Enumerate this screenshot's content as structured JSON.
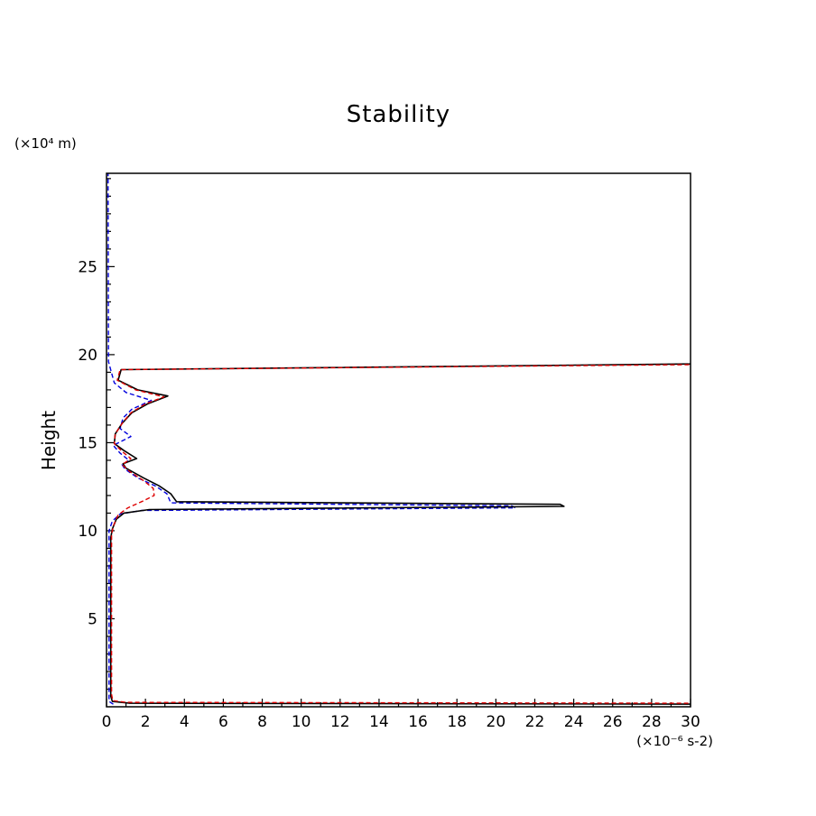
{
  "chart_data": {
    "type": "line",
    "title": "Stability",
    "ylabel": "Height",
    "ylabel_unit": "(×10⁴ m)",
    "xlabel": "(×10⁻⁶ s-2)",
    "xlim": [
      0,
      30
    ],
    "ylim": [
      0,
      30.3
    ],
    "grid": false,
    "legend": "none",
    "x_major_ticks": [
      0,
      2,
      4,
      6,
      8,
      10,
      12,
      14,
      16,
      18,
      20,
      22,
      24,
      26,
      28,
      30
    ],
    "x_minor_ticks": [
      1,
      3,
      5,
      7,
      9,
      11,
      13,
      15,
      17,
      19,
      21,
      23,
      25,
      27,
      29
    ],
    "y_major_ticks": [
      5,
      10,
      15,
      20,
      25
    ],
    "y_minor_ticks": [
      1,
      2,
      3,
      4,
      6,
      7,
      8,
      9,
      11,
      12,
      13,
      14,
      16,
      17,
      18,
      19,
      21,
      22,
      23,
      24,
      26,
      27,
      28,
      29,
      30
    ],
    "series": [
      {
        "name": "profile-blue-dashed",
        "color": "#0000dd",
        "dash": "5,3",
        "width": 1.4,
        "points": [
          [
            0.35,
            0.15
          ],
          [
            0.13,
            0.3
          ],
          [
            0.13,
            10.0
          ],
          [
            0.3,
            10.55
          ],
          [
            0.7,
            10.95
          ],
          [
            1.8,
            11.15
          ],
          [
            21.0,
            11.3
          ],
          [
            20.8,
            11.42
          ],
          [
            3.3,
            11.58
          ],
          [
            3.1,
            12.1
          ],
          [
            2.5,
            12.55
          ],
          [
            1.6,
            13.0
          ],
          [
            0.95,
            13.5
          ],
          [
            0.8,
            13.75
          ],
          [
            1.15,
            14.0
          ],
          [
            0.7,
            14.4
          ],
          [
            0.35,
            14.85
          ],
          [
            1.25,
            15.35
          ],
          [
            0.7,
            15.8
          ],
          [
            0.85,
            16.4
          ],
          [
            1.3,
            16.9
          ],
          [
            2.3,
            17.4
          ],
          [
            1.0,
            17.85
          ],
          [
            0.4,
            18.4
          ],
          [
            0.25,
            19.0
          ],
          [
            0.1,
            19.6
          ],
          [
            0.08,
            30.3
          ]
        ]
      },
      {
        "name": "profile-black-solid",
        "color": "#000000",
        "dash": null,
        "width": 1.6,
        "points": [
          [
            31,
            0.15
          ],
          [
            1.2,
            0.2
          ],
          [
            0.3,
            0.3
          ],
          [
            0.22,
            0.6
          ],
          [
            0.22,
            9.6
          ],
          [
            0.3,
            10.1
          ],
          [
            0.5,
            10.65
          ],
          [
            0.9,
            11.0
          ],
          [
            2.2,
            11.2
          ],
          [
            23.5,
            11.38
          ],
          [
            23.3,
            11.5
          ],
          [
            3.6,
            11.65
          ],
          [
            3.3,
            12.1
          ],
          [
            2.7,
            12.55
          ],
          [
            1.9,
            13.0
          ],
          [
            1.0,
            13.55
          ],
          [
            0.85,
            13.8
          ],
          [
            1.55,
            14.1
          ],
          [
            0.9,
            14.55
          ],
          [
            0.4,
            14.95
          ],
          [
            0.45,
            15.5
          ],
          [
            0.8,
            16.1
          ],
          [
            1.3,
            16.7
          ],
          [
            2.1,
            17.2
          ],
          [
            3.15,
            17.65
          ],
          [
            1.6,
            18.0
          ],
          [
            0.6,
            18.55
          ],
          [
            0.75,
            19.15
          ],
          [
            31,
            19.48
          ]
        ]
      },
      {
        "name": "profile-red-dashed",
        "color": "#dd0000",
        "dash": "5,3",
        "width": 1.4,
        "points": [
          [
            31,
            0.2
          ],
          [
            1.0,
            0.25
          ],
          [
            0.32,
            0.35
          ],
          [
            0.26,
            0.7
          ],
          [
            0.26,
            9.8
          ],
          [
            0.36,
            10.3
          ],
          [
            0.6,
            10.9
          ],
          [
            1.1,
            11.3
          ],
          [
            1.9,
            11.7
          ],
          [
            2.45,
            12.0
          ],
          [
            2.4,
            12.4
          ],
          [
            1.9,
            12.85
          ],
          [
            1.2,
            13.35
          ],
          [
            0.8,
            13.75
          ],
          [
            1.25,
            14.1
          ],
          [
            0.8,
            14.5
          ],
          [
            0.4,
            14.95
          ],
          [
            0.45,
            15.5
          ],
          [
            0.8,
            16.1
          ],
          [
            1.25,
            16.7
          ],
          [
            2.0,
            17.2
          ],
          [
            2.95,
            17.6
          ],
          [
            1.5,
            18.0
          ],
          [
            0.55,
            18.55
          ],
          [
            0.7,
            19.15
          ],
          [
            31,
            19.44
          ]
        ]
      }
    ]
  }
}
